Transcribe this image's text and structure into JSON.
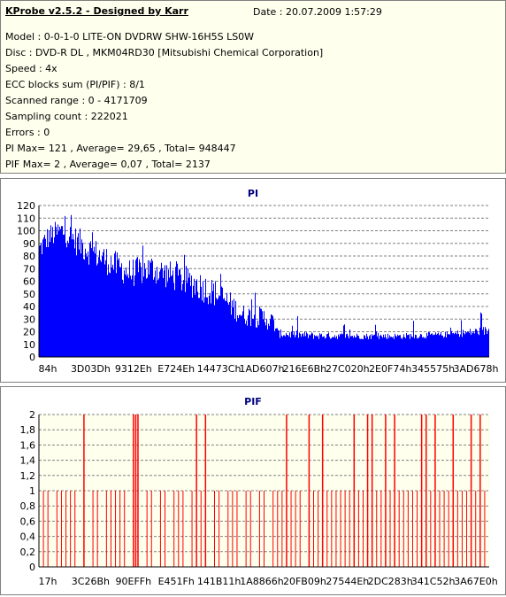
{
  "info": {
    "title": "KProbe v2.5.2 - Designed by Karr",
    "date": "Date : 20.07.2009 1:57:29",
    "lines": [
      "Model : 0-0-1-0 LITE-ON DVDRW SHW-16H5S  LS0W",
      "Disc : DVD-R DL , MKM04RD30 [Mitsubishi Chemical Corporation]",
      "Speed : 4x",
      "ECC blocks sum (PI/PIF) : 8/1",
      "Scanned range : 0 - 4171709",
      "Sampling count : 222021",
      "Errors : 0",
      "PI Max= 121 , Average= 29,65 , Total= 948447",
      "PIF Max= 2 , Average= 0,07 , Total= 2137"
    ]
  },
  "colors": {
    "pi_fill": "#0000ff",
    "pif_line": "#ff0000",
    "title": "#000080",
    "grid": "#808080",
    "info_bg": "#ffffee"
  },
  "chart_data": [
    {
      "type": "area",
      "title": "PI",
      "ylim": [
        0,
        120
      ],
      "yticks": [
        0,
        10,
        20,
        30,
        40,
        50,
        60,
        70,
        80,
        90,
        100,
        110,
        120
      ],
      "grid": true,
      "xtick_labels": [
        "84h",
        "3D03Dh",
        "9312Eh",
        "E724Eh",
        "14473Ch",
        "1AD607h",
        "216E6Bh",
        "27C020h",
        "2E0F74h",
        "345575h",
        "3AD678h"
      ],
      "xrange_fraction_profile": {
        "x": [
          0,
          0.02,
          0.05,
          0.1,
          0.15,
          0.2,
          0.25,
          0.3,
          0.35,
          0.4,
          0.43,
          0.45,
          0.5,
          0.52,
          0.53,
          0.6,
          0.7,
          0.8,
          0.9,
          1.0
        ],
        "upper": [
          95,
          105,
          110,
          100,
          88,
          78,
          82,
          75,
          70,
          60,
          50,
          42,
          40,
          35,
          22,
          20,
          19,
          19,
          20,
          25
        ],
        "lower": [
          75,
          85,
          90,
          75,
          65,
          55,
          58,
          52,
          45,
          38,
          30,
          25,
          22,
          20,
          15,
          14,
          14,
          14,
          15,
          17
        ]
      },
      "max": 121,
      "average": 29.65
    },
    {
      "type": "bar",
      "title": "PIF",
      "ylim": [
        0,
        2
      ],
      "yticks": [
        "0",
        "0,2",
        "0,4",
        "0,6",
        "0,8",
        "1",
        "1,2",
        "1,4",
        "1,6",
        "1,8",
        "2"
      ],
      "grid": true,
      "xtick_labels": [
        "17h",
        "3C26Bh",
        "90EFFh",
        "E451Fh",
        "141B11h",
        "1A8866h",
        "20FB09h",
        "27544Eh",
        "2DC283h",
        "341C52h",
        "3A67E0h"
      ],
      "spikes_to_2_fraction": [
        0.1,
        0.21,
        0.215,
        0.22,
        0.35,
        0.37,
        0.55,
        0.6,
        0.63,
        0.7,
        0.73,
        0.74,
        0.77,
        0.79,
        0.85,
        0.86,
        0.88,
        0.92,
        0.96,
        0.98
      ],
      "spikes_to_1_fraction": [
        0.01,
        0.02,
        0.04,
        0.05,
        0.06,
        0.07,
        0.08,
        0.12,
        0.13,
        0.15,
        0.16,
        0.17,
        0.18,
        0.19,
        0.24,
        0.25,
        0.27,
        0.28,
        0.3,
        0.31,
        0.32,
        0.34,
        0.36,
        0.39,
        0.4,
        0.42,
        0.43,
        0.44,
        0.46,
        0.47,
        0.49,
        0.5,
        0.52,
        0.53,
        0.54,
        0.56,
        0.57,
        0.58,
        0.61,
        0.62,
        0.64,
        0.65,
        0.66,
        0.67,
        0.68,
        0.69,
        0.71,
        0.72,
        0.75,
        0.76,
        0.78,
        0.8,
        0.81,
        0.82,
        0.83,
        0.84,
        0.87,
        0.89,
        0.9,
        0.91,
        0.93,
        0.94,
        0.95,
        0.97,
        0.99
      ],
      "max": 2,
      "average": 0.07
    }
  ]
}
